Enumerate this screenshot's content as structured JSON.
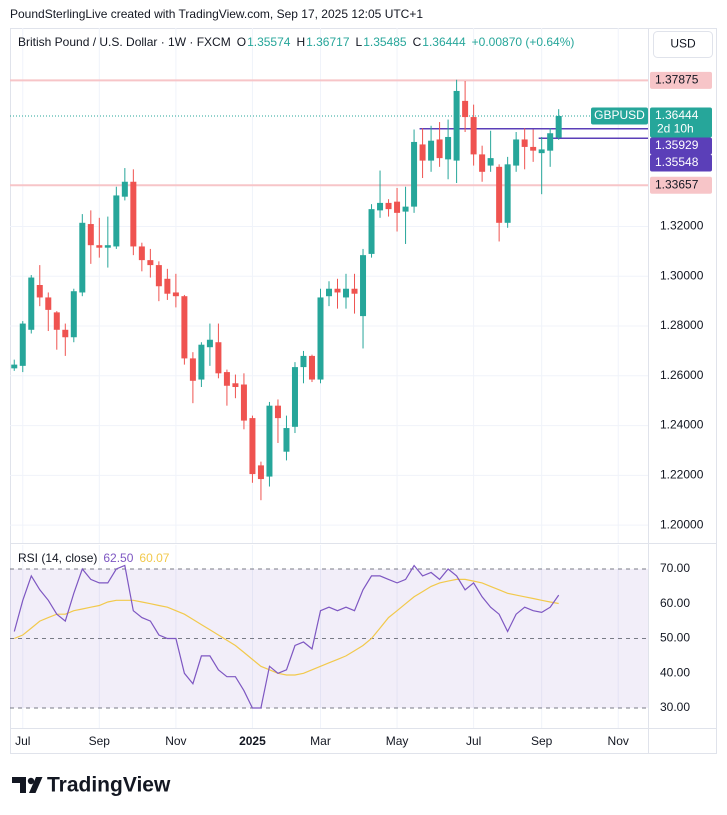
{
  "header": {
    "credit": "PoundSterlingLive created with TradingView.com, Sep 17, 2025 12:05 UTC+1"
  },
  "footer": {
    "brand": "TradingView"
  },
  "chart_data": {
    "type": "candlestick",
    "title": "British Pound / U.S. Dollar · 1W · FXCM",
    "symbol": "GBPUSD",
    "currency": "USD",
    "ohlc": [
      {
        "label": "O",
        "value": 1.35574
      },
      {
        "label": "H",
        "value": 1.36717
      },
      {
        "label": "L",
        "value": 1.35485
      },
      {
        "label": "C",
        "value": 1.36444
      }
    ],
    "change": "+0.00870 (+0.64%)",
    "up_color": "#26a69a",
    "down_color": "#ef5350",
    "candles": {
      "open": [
        1.263,
        1.264,
        1.2785,
        1.2965,
        1.2915,
        1.2855,
        1.2785,
        1.2755,
        1.2935,
        1.321,
        1.3125,
        1.3115,
        1.312,
        1.332,
        1.338,
        1.312,
        1.3065,
        1.3045,
        1.299,
        1.2935,
        1.292,
        1.267,
        1.2585,
        1.2715,
        1.2735,
        1.2615,
        1.257,
        1.2565,
        1.243,
        1.224,
        1.2195,
        1.248,
        1.2295,
        1.2395,
        1.2635,
        1.268,
        1.2585,
        1.292,
        1.295,
        1.2915,
        1.295,
        1.284,
        1.309,
        1.3265,
        1.3295,
        1.33,
        1.326,
        1.328,
        1.353,
        1.3465,
        1.355,
        1.347,
        1.3465,
        1.3705,
        1.364,
        1.349,
        1.3445,
        1.344,
        1.3215,
        1.3445,
        1.355,
        1.352,
        1.3495,
        1.3505,
        1.35574
      ],
      "high": [
        1.2665,
        1.282,
        1.3005,
        1.3045,
        1.2935,
        1.286,
        1.281,
        1.295,
        1.325,
        1.3265,
        1.3235,
        1.324,
        1.336,
        1.3435,
        1.343,
        1.3135,
        1.311,
        1.306,
        1.303,
        1.301,
        1.2925,
        1.2695,
        1.2735,
        1.281,
        1.281,
        1.2625,
        1.2605,
        1.261,
        1.244,
        1.2255,
        1.2495,
        1.2505,
        1.244,
        1.2655,
        1.27,
        1.2685,
        1.295,
        1.298,
        1.299,
        1.301,
        1.301,
        1.311,
        1.329,
        1.3425,
        1.331,
        1.3355,
        1.336,
        1.359,
        1.3595,
        1.3605,
        1.362,
        1.363,
        1.379,
        1.3785,
        1.369,
        1.3525,
        1.3585,
        1.345,
        1.348,
        1.358,
        1.3595,
        1.359,
        1.356,
        1.3595,
        1.36717
      ],
      "low": [
        1.262,
        1.2615,
        1.277,
        1.288,
        1.278,
        1.2705,
        1.268,
        1.2735,
        1.292,
        1.305,
        1.3075,
        1.3035,
        1.311,
        1.3305,
        1.3085,
        1.302,
        1.2995,
        1.29,
        1.2905,
        1.2875,
        1.2645,
        1.249,
        1.2555,
        1.264,
        1.259,
        1.248,
        1.251,
        1.2385,
        1.217,
        1.21,
        1.2155,
        1.233,
        1.226,
        1.237,
        1.257,
        1.2575,
        1.257,
        1.288,
        1.287,
        1.287,
        1.285,
        1.271,
        1.3075,
        1.3235,
        1.324,
        1.318,
        1.313,
        1.3255,
        1.3395,
        1.342,
        1.344,
        1.339,
        1.3375,
        1.358,
        1.3445,
        1.338,
        1.342,
        1.314,
        1.3195,
        1.342,
        1.343,
        1.346,
        1.333,
        1.344,
        1.35485
      ],
      "close": [
        1.2645,
        1.281,
        1.2995,
        1.2915,
        1.2865,
        1.2785,
        1.2755,
        1.294,
        1.3215,
        1.3125,
        1.3115,
        1.3125,
        1.3325,
        1.338,
        1.312,
        1.3065,
        1.3045,
        1.296,
        1.293,
        1.292,
        1.267,
        1.258,
        1.2725,
        1.2745,
        1.261,
        1.256,
        1.2555,
        1.242,
        1.2205,
        1.2185,
        1.248,
        1.243,
        1.239,
        1.2635,
        1.268,
        1.2585,
        1.2915,
        1.295,
        1.2935,
        1.295,
        1.293,
        1.3085,
        1.327,
        1.3295,
        1.327,
        1.3255,
        1.328,
        1.354,
        1.3465,
        1.3545,
        1.3475,
        1.356,
        1.3745,
        1.364,
        1.349,
        1.342,
        1.3475,
        1.3215,
        1.345,
        1.355,
        1.352,
        1.3505,
        1.351,
        1.3575,
        1.36444
      ]
    },
    "ylim": [
      1.1928,
      1.3998
    ],
    "yticks": [
      {
        "value": 1.2,
        "label": "1.20000"
      },
      {
        "value": 1.22,
        "label": "1.22000"
      },
      {
        "value": 1.24,
        "label": "1.24000"
      },
      {
        "value": 1.26,
        "label": "1.26000"
      },
      {
        "value": 1.28,
        "label": "1.28000"
      },
      {
        "value": 1.3,
        "label": "1.30000"
      },
      {
        "value": 1.32,
        "label": "1.32000"
      }
    ],
    "xlim": [
      -0.5,
      74.5
    ],
    "xticks": [
      {
        "value": 1,
        "label": "Jul"
      },
      {
        "value": 10,
        "label": "Sep"
      },
      {
        "value": 19,
        "label": "Nov"
      },
      {
        "value": 28,
        "label": "2025"
      },
      {
        "value": 36,
        "label": "Mar"
      },
      {
        "value": 45,
        "label": "May"
      },
      {
        "value": 54,
        "label": "Jul"
      },
      {
        "value": 62,
        "label": "Sep"
      },
      {
        "value": 71,
        "label": "Nov"
      }
    ],
    "grid": true,
    "levels": [
      {
        "value": 1.37875,
        "color": "#f7c5c8"
      },
      {
        "value": 1.33657,
        "color": "#f7c5c8"
      }
    ],
    "rays": [
      {
        "value": 1.35929,
        "anchor": 48,
        "color": "#5b3fb8"
      },
      {
        "value": 1.35548,
        "anchor": 62,
        "color": "#5b3fb8"
      }
    ],
    "last_price": {
      "value": 1.36444,
      "countdown": "2d 10h",
      "color": "#26a69a"
    },
    "rsi": {
      "type": "line",
      "title": "RSI (14, close)",
      "ylim": [
        24.25,
        76.9
      ],
      "yticks": [
        {
          "value": 30,
          "label": "30.00"
        },
        {
          "value": 40,
          "label": "40.00"
        },
        {
          "value": 50,
          "label": "50.00"
        },
        {
          "value": 60,
          "label": "60.00"
        },
        {
          "value": 70,
          "label": "70.00"
        }
      ],
      "bands": [
        70,
        50,
        30
      ],
      "series": [
        {
          "color": "#7e57c2",
          "value_label": "62.50",
          "values": [
            52,
            61,
            68,
            64,
            61,
            57,
            55,
            63,
            70,
            67,
            66,
            66,
            70,
            71,
            58,
            56,
            55,
            51,
            50,
            50,
            40,
            37,
            45,
            45,
            41,
            39,
            39,
            35,
            30,
            30,
            42,
            40,
            41,
            48,
            49,
            47,
            58,
            59,
            58,
            59,
            58,
            64,
            68,
            68,
            67,
            66,
            67,
            71,
            68,
            69,
            67,
            70,
            68,
            64,
            66,
            62,
            59,
            57,
            52,
            57,
            59,
            58,
            57.5,
            59,
            62.5
          ]
        },
        {
          "color": "#f2c94c",
          "value_label": "60.07",
          "values": [
            50,
            51,
            53,
            55,
            56,
            57,
            57,
            58,
            58.5,
            59,
            59.5,
            60.5,
            61,
            61,
            61,
            60.5,
            60,
            59.5,
            59,
            58,
            57,
            55.5,
            54,
            52.5,
            51,
            49.5,
            48,
            46,
            44,
            42,
            41,
            40,
            39.5,
            39.5,
            40,
            41,
            42,
            43,
            44,
            45,
            46.5,
            48,
            50,
            53,
            56,
            58,
            60,
            62,
            63.5,
            65,
            66,
            66.5,
            67,
            67,
            66.5,
            66,
            65,
            64,
            63,
            62.5,
            62,
            61.5,
            61,
            60.5,
            60.07
          ]
        }
      ]
    }
  }
}
